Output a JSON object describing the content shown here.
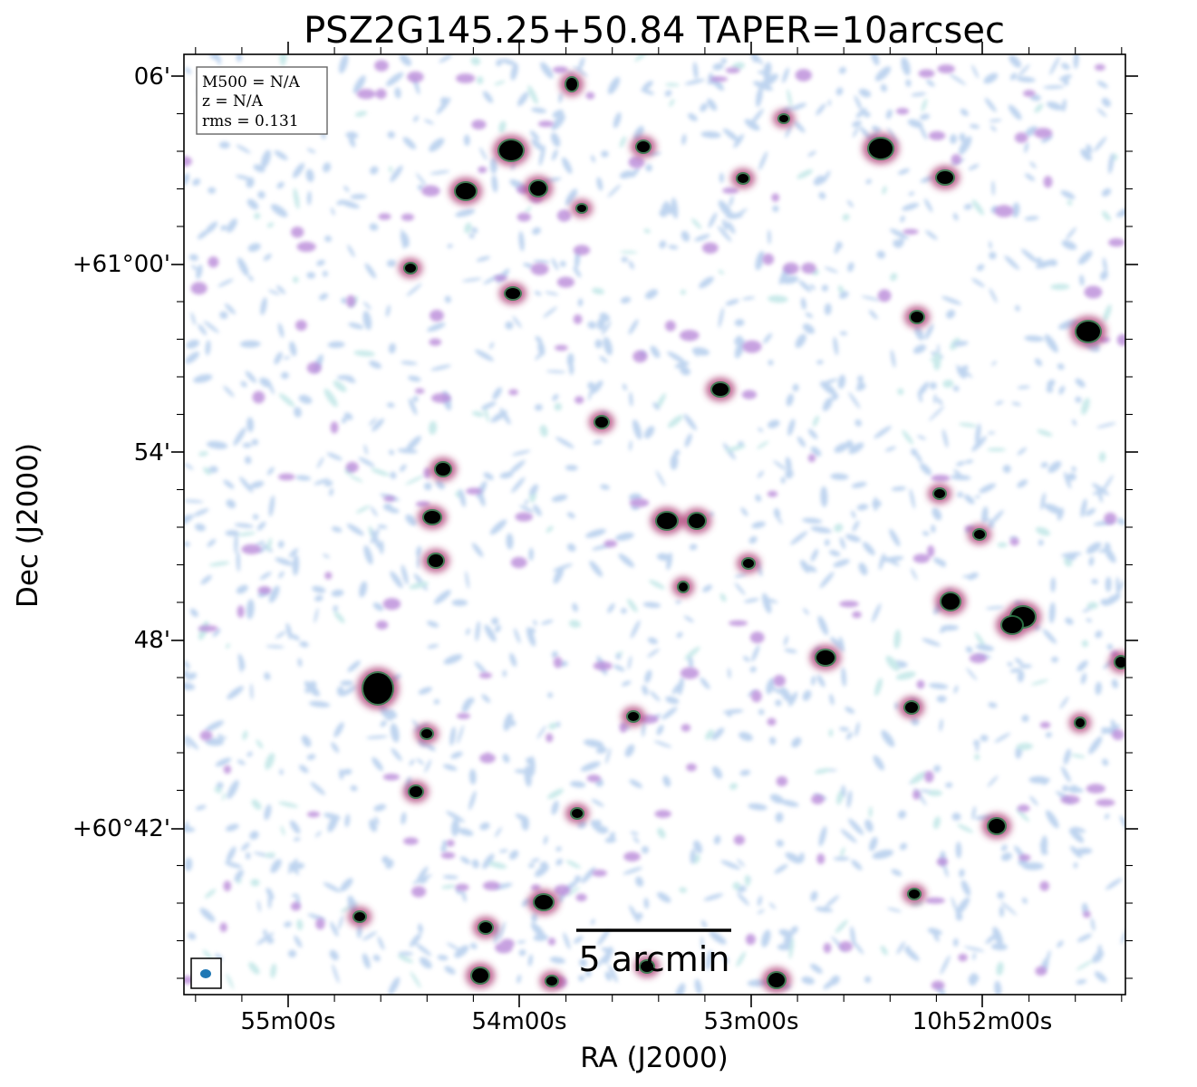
{
  "chart_data": {
    "type": "heatmap",
    "title": "PSZ2G145.25+50.84 TAPER=10arcsec",
    "xlabel": "RA (J2000)",
    "ylabel": "Dec (J2000)",
    "x_ticks": [
      "55m00s",
      "54m00s",
      "53m00s",
      "10h52m00s"
    ],
    "y_ticks": [
      "06'",
      "+61°00'",
      "54'",
      "48'",
      "+60°42'"
    ],
    "info": {
      "mass": "M500 = N/A",
      "redshift": "z = N/A",
      "rms": "rms = 0.131"
    },
    "scalebar_label": "5 arcmin",
    "colors": {
      "background": "#ffffff",
      "faint": "#a9c6ea",
      "medium": "#b98ad9",
      "bright": "#b0457a",
      "core": "#000000",
      "beam": "#1f77b4"
    }
  }
}
